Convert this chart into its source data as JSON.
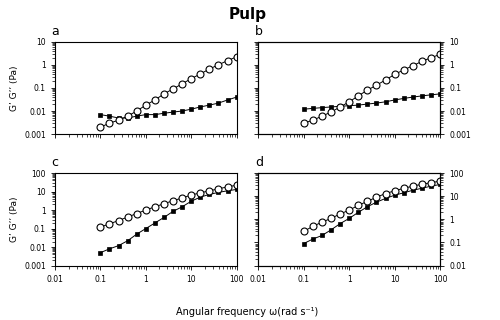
{
  "title": "Pulp",
  "xlabel": "Angular frequency ω(rad s⁻¹)",
  "ylabel_top": "G’ G’’ (Pa)",
  "ylabel_bot": "G’ G’’ (Pa)",
  "panel_labels": [
    "a",
    "b",
    "c",
    "d"
  ],
  "panels": {
    "a": {
      "xlim": [
        0.01,
        100
      ],
      "ylim": [
        0.001,
        10
      ],
      "Gprime": {
        "x": [
          0.1,
          0.158,
          0.251,
          0.398,
          0.631,
          1.0,
          1.585,
          2.512,
          3.981,
          6.31,
          10.0,
          15.85,
          25.12,
          39.81,
          63.1,
          100.0
        ],
        "y": [
          0.007,
          0.006,
          0.005,
          0.005,
          0.006,
          0.007,
          0.007,
          0.008,
          0.009,
          0.01,
          0.012,
          0.015,
          0.018,
          0.022,
          0.03,
          0.04
        ]
      },
      "Gdprime": {
        "x": [
          0.1,
          0.158,
          0.251,
          0.398,
          0.631,
          1.0,
          1.585,
          2.512,
          3.981,
          6.31,
          10.0,
          15.85,
          25.12,
          39.81,
          63.1,
          100.0
        ],
        "y": [
          0.002,
          0.003,
          0.004,
          0.006,
          0.01,
          0.018,
          0.03,
          0.055,
          0.09,
          0.15,
          0.25,
          0.4,
          0.65,
          1.0,
          1.5,
          2.2
        ]
      }
    },
    "b": {
      "xlim": [
        0.01,
        100
      ],
      "ylim": [
        0.001,
        10
      ],
      "Gprime": {
        "x": [
          0.1,
          0.158,
          0.251,
          0.398,
          0.631,
          1.0,
          1.585,
          2.512,
          3.981,
          6.31,
          10.0,
          15.85,
          25.12,
          39.81,
          63.1,
          100.0
        ],
        "y": [
          0.012,
          0.013,
          0.014,
          0.015,
          0.016,
          0.017,
          0.018,
          0.02,
          0.022,
          0.025,
          0.03,
          0.035,
          0.04,
          0.045,
          0.05,
          0.055
        ]
      },
      "Gdprime": {
        "x": [
          0.1,
          0.158,
          0.251,
          0.398,
          0.631,
          1.0,
          1.585,
          2.512,
          3.981,
          6.31,
          10.0,
          15.85,
          25.12,
          39.81,
          63.1,
          100.0
        ],
        "y": [
          0.003,
          0.004,
          0.006,
          0.009,
          0.015,
          0.025,
          0.045,
          0.08,
          0.13,
          0.22,
          0.38,
          0.6,
          0.9,
          1.4,
          2.0,
          2.8
        ]
      }
    },
    "c": {
      "xlim": [
        0.01,
        100
      ],
      "ylim": [
        0.001,
        100
      ],
      "Gprime": {
        "x": [
          0.1,
          0.158,
          0.251,
          0.398,
          0.631,
          1.0,
          1.585,
          2.512,
          3.981,
          6.31,
          10.0,
          15.85,
          25.12,
          39.81,
          63.1,
          100.0
        ],
        "y": [
          0.005,
          0.008,
          0.012,
          0.022,
          0.05,
          0.1,
          0.2,
          0.4,
          0.85,
          1.5,
          3.0,
          5.0,
          7.0,
          9.0,
          11.0,
          13.0
        ]
      },
      "Gdprime": {
        "x": [
          0.1,
          0.158,
          0.251,
          0.398,
          0.631,
          1.0,
          1.585,
          2.512,
          3.981,
          6.31,
          10.0,
          15.85,
          25.12,
          39.81,
          63.1,
          100.0
        ],
        "y": [
          0.12,
          0.18,
          0.27,
          0.42,
          0.65,
          1.0,
          1.5,
          2.2,
          3.2,
          4.5,
          6.5,
          8.5,
          11.0,
          14.0,
          18.0,
          22.0
        ]
      }
    },
    "d": {
      "xlim": [
        0.01,
        100
      ],
      "ylim": [
        0.01,
        100
      ],
      "Gprime": {
        "x": [
          0.1,
          0.158,
          0.251,
          0.398,
          0.631,
          1.0,
          1.585,
          2.512,
          3.981,
          6.31,
          10.0,
          15.85,
          25.12,
          39.81,
          63.1,
          100.0
        ],
        "y": [
          0.09,
          0.14,
          0.2,
          0.35,
          0.65,
          1.1,
          2.0,
          3.5,
          5.5,
          8.0,
          11.0,
          14.0,
          18.0,
          22.0,
          27.0,
          32.0
        ]
      },
      "Gdprime": {
        "x": [
          0.1,
          0.158,
          0.251,
          0.398,
          0.631,
          1.0,
          1.585,
          2.512,
          3.981,
          6.31,
          10.0,
          15.85,
          25.12,
          39.81,
          63.1,
          100.0
        ],
        "y": [
          0.3,
          0.5,
          0.75,
          1.1,
          1.7,
          2.5,
          4.0,
          6.0,
          9.0,
          13.0,
          17.0,
          22.0,
          27.0,
          33.0,
          38.0,
          45.0
        ]
      }
    }
  },
  "markersize_filled": 3.5,
  "markersize_open": 5,
  "linewidth": 0.7
}
